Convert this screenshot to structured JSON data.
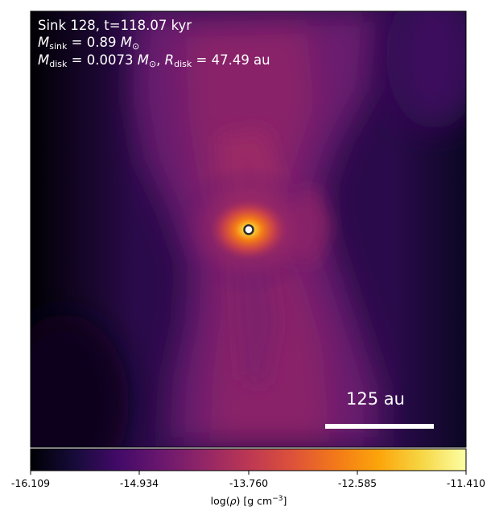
{
  "annotation": {
    "line1": "Sink 128, t=118.07 kyr",
    "msink_symbol": "M",
    "msink_sub": "sink",
    "msink_value": " = 0.89 ",
    "msun_symbol": "M",
    "msun_sub": "⊙",
    "mdisk_symbol": "M",
    "mdisk_sub": "disk",
    "mdisk_value": " = 0.0073 ",
    "rdisk_sep": ", ",
    "rdisk_symbol": "R",
    "rdisk_sub": "disk",
    "rdisk_value": " = 47.49 au"
  },
  "scale_bar": {
    "label": "125 au"
  },
  "colorbar": {
    "colormap": "inferno",
    "ticks": [
      "-16.109",
      "-14.934",
      "-13.760",
      "-12.585",
      "-11.410"
    ],
    "label_prefix": "log(",
    "label_rho": "ρ",
    "label_units": ") [g cm",
    "label_exp": "−3",
    "label_close": "]",
    "range": [
      -16.109,
      -11.41
    ]
  },
  "sink_marker": {
    "fill": "#ffffff",
    "edge": "#2b2b2b"
  },
  "colors": {
    "background": "#000004",
    "accent": "#fcffa4"
  }
}
